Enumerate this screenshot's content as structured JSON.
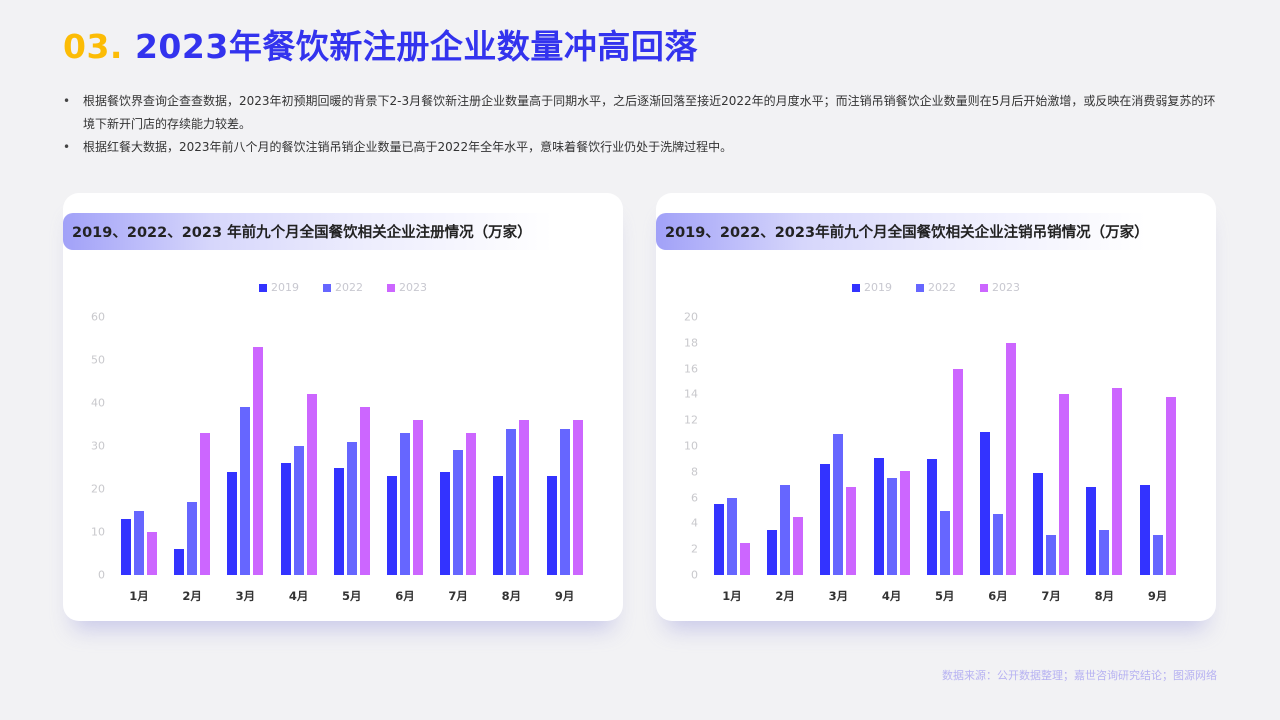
{
  "header": {
    "number": "03.",
    "title": "2023年餐饮新注册企业数量冲高回落"
  },
  "bullets": [
    "根据餐饮界查询企查查数据，2023年初预期回暖的背景下2-3月餐饮新注册企业数量高于同期水平，之后逐渐回落至接近2022年的月度水平；而注销吊销餐饮企业数量则在5月后开始激增，或反映在消费弱复苏的环境下新开门店的存续能力较差。",
    "根据红餐大数据，2023年前八个月的餐饮注销吊销企业数量已高于2022年全年水平，意味着餐饮行业仍处于洗牌过程中。"
  ],
  "colors": {
    "2019": "#3333ff",
    "2022": "#6666ff",
    "2023": "#cc66ff",
    "title_number": "#fcbc05",
    "title_text": "#3333ee"
  },
  "chart_data": [
    {
      "type": "bar",
      "title": "2019、2022、2023 年前九个月全国餐饮相关企业注册情况（万家）",
      "xlabel": "",
      "ylabel": "",
      "categories": [
        "1月",
        "2月",
        "3月",
        "4月",
        "5月",
        "6月",
        "7月",
        "8月",
        "9月"
      ],
      "series": [
        {
          "name": "2019",
          "values": [
            13,
            6,
            24,
            26,
            25,
            23,
            24,
            23,
            23
          ]
        },
        {
          "name": "2022",
          "values": [
            15,
            17,
            39,
            30,
            31,
            33,
            29,
            34,
            34
          ]
        },
        {
          "name": "2023",
          "values": [
            10,
            33,
            53,
            42,
            39,
            36,
            33,
            36,
            36
          ]
        }
      ],
      "ylim": [
        0,
        60
      ],
      "yticks": [
        0,
        10,
        20,
        30,
        40,
        50,
        60
      ],
      "legend_position": "top",
      "grid": false
    },
    {
      "type": "bar",
      "title": "2019、2022、2023年前九个月全国餐饮相关企业注销吊销情况（万家）",
      "xlabel": "",
      "ylabel": "",
      "categories": [
        "1月",
        "2月",
        "3月",
        "4月",
        "5月",
        "6月",
        "7月",
        "8月",
        "9月"
      ],
      "series": [
        {
          "name": "2019",
          "values": [
            5.5,
            3.5,
            8.6,
            9.1,
            9.0,
            11.1,
            7.9,
            6.8,
            7.0
          ]
        },
        {
          "name": "2022",
          "values": [
            6.0,
            7.0,
            10.9,
            7.5,
            5.0,
            4.7,
            3.1,
            3.5,
            3.1
          ]
        },
        {
          "name": "2023",
          "values": [
            2.5,
            4.5,
            6.8,
            8.1,
            16.0,
            18.0,
            14.0,
            14.5,
            13.8
          ]
        }
      ],
      "ylim": [
        0,
        20
      ],
      "yticks": [
        0,
        2,
        4,
        6,
        8,
        10,
        12,
        14,
        16,
        18,
        20
      ],
      "legend_position": "top",
      "grid": false
    }
  ],
  "source": "数据来源：公开数据整理；嘉世咨询研究结论；图源网络"
}
